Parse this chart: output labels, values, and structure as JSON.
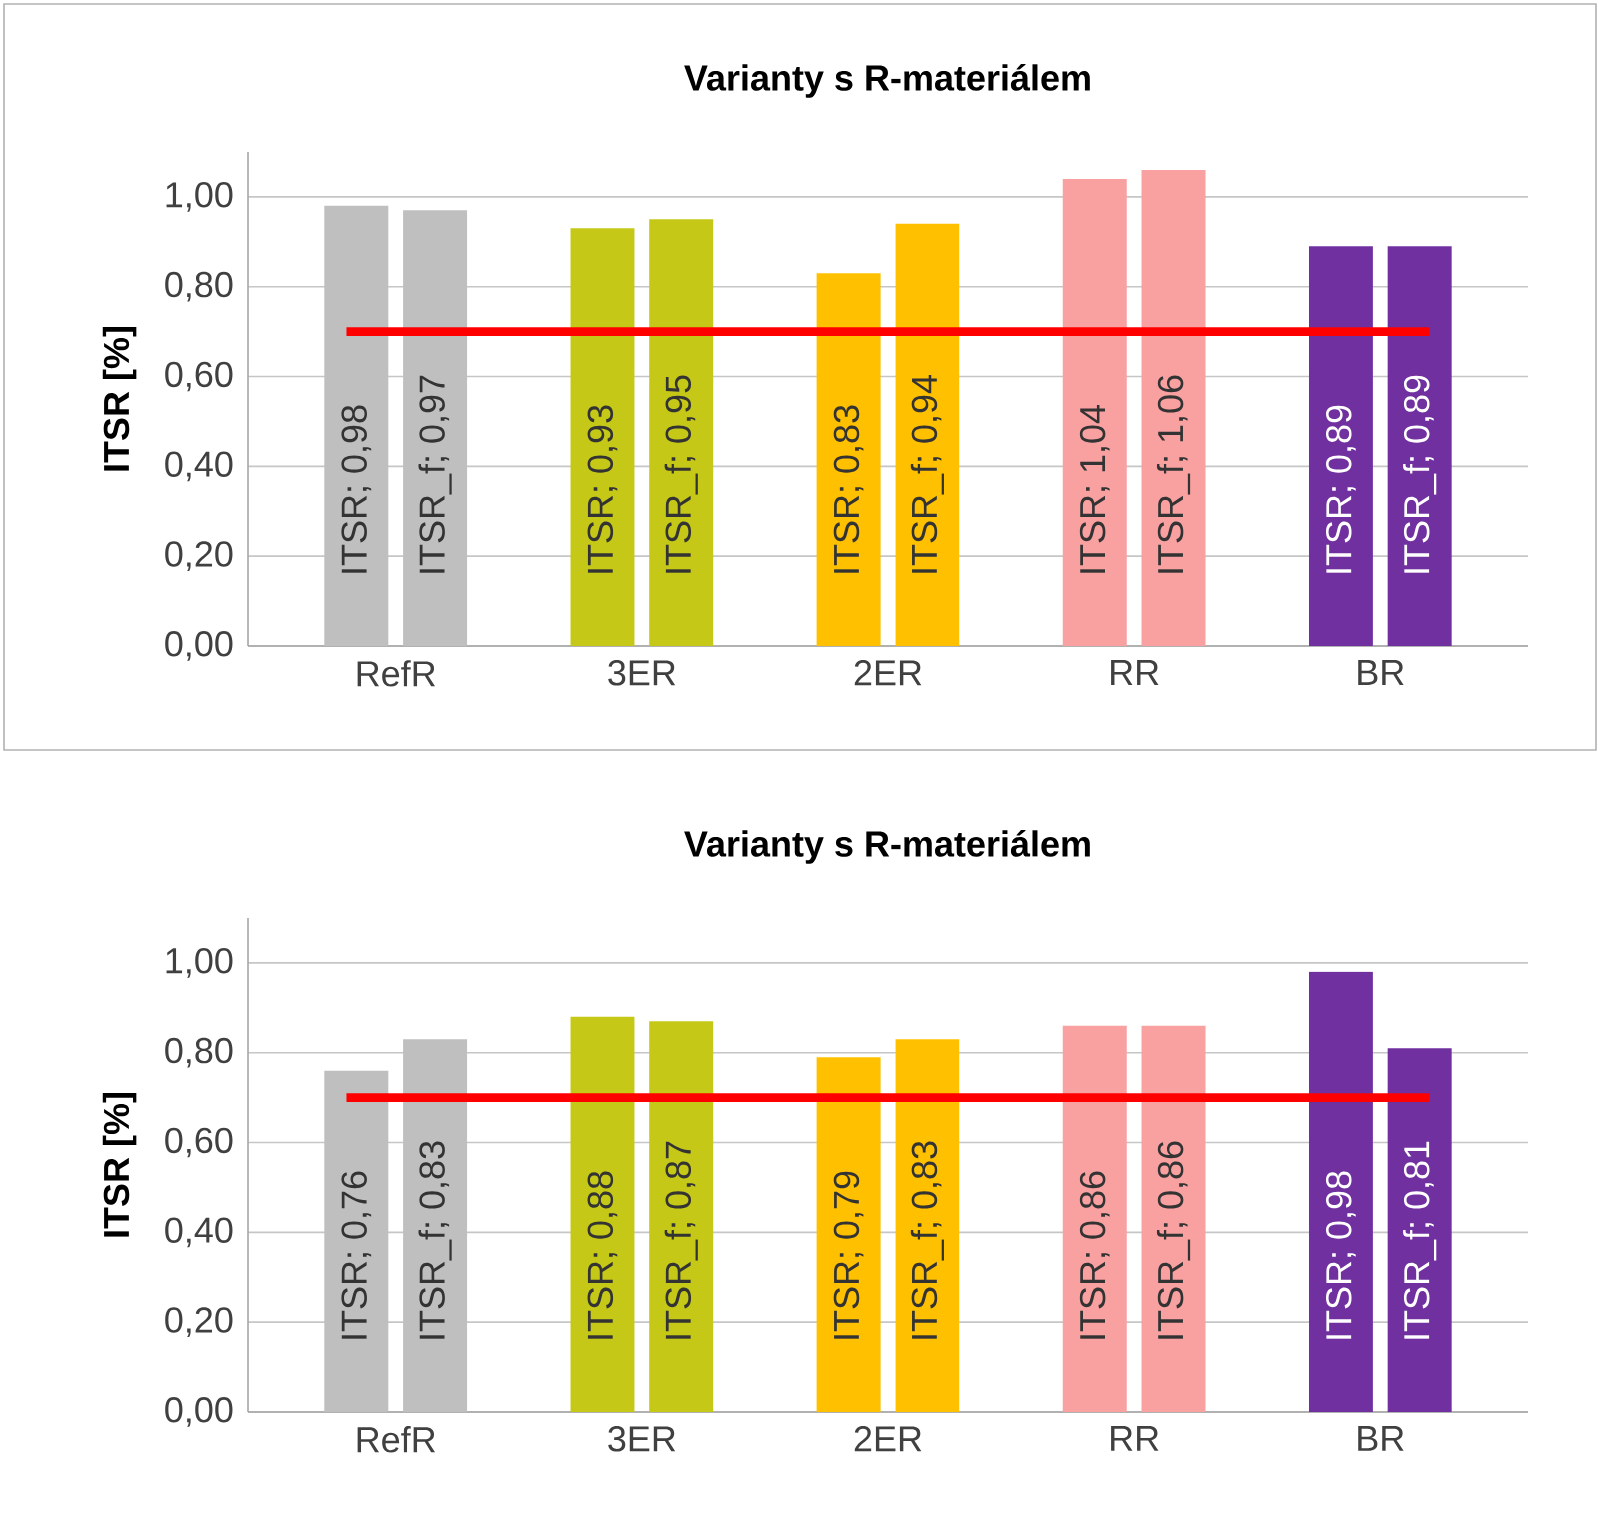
{
  "chart_data": [
    {
      "type": "bar",
      "title": "Varianty s R-materiálem",
      "ylabel": "ITSR [%]",
      "categories": [
        "RefR",
        "3ER",
        "2ER",
        "RR",
        "BR"
      ],
      "series": [
        {
          "colors": [
            "#bfbfbf",
            "#c5c817",
            "#ffc000",
            "#f9a0a0",
            "#7030a0"
          ],
          "values": [
            0.98,
            0.93,
            0.83,
            1.04,
            0.89
          ],
          "value_labels": [
            "ITSR; 0,98",
            "ITSR; 0,93",
            "ITSR; 0,83",
            "ITSR; 1,04",
            "ITSR; 0,89"
          ]
        },
        {
          "colors": [
            "#bfbfbf",
            "#c5c817",
            "#ffc000",
            "#f9a0a0",
            "#7030a0"
          ],
          "values": [
            0.97,
            0.95,
            0.94,
            1.06,
            0.89
          ],
          "value_labels": [
            "ITSR_f; 0,97",
            "ITSR_f; 0,95",
            "ITSR_f; 0,94",
            "ITSR_f; 1,06",
            "ITSR_f; 0,89"
          ]
        }
      ],
      "ylim": [
        0,
        1.1
      ],
      "yticks": [
        {
          "value": 0,
          "label": "0,00"
        },
        {
          "value": 0.2,
          "label": "0,20"
        },
        {
          "value": 0.4,
          "label": "0,40"
        },
        {
          "value": 0.6,
          "label": "0,60"
        },
        {
          "value": 0.8,
          "label": "0,80"
        },
        {
          "value": 1.0,
          "label": "1,00"
        }
      ],
      "grid": "y",
      "ref_lines": [
        {
          "axis": "y",
          "value": 0.7,
          "color": "#ff0000"
        }
      ]
    },
    {
      "type": "bar",
      "title": "Varianty s R-materiálem",
      "ylabel": "ITSR [%]",
      "categories": [
        "RefR",
        "3ER",
        "2ER",
        "RR",
        "BR"
      ],
      "series": [
        {
          "colors": [
            "#bfbfbf",
            "#c5c817",
            "#ffc000",
            "#f9a0a0",
            "#7030a0"
          ],
          "values": [
            0.76,
            0.88,
            0.79,
            0.86,
            0.98
          ],
          "value_labels": [
            "ITSR; 0,76",
            "ITSR; 0,88",
            "ITSR; 0,79",
            "ITSR; 0,86",
            "ITSR; 0,98"
          ]
        },
        {
          "colors": [
            "#bfbfbf",
            "#c5c817",
            "#ffc000",
            "#f9a0a0",
            "#7030a0"
          ],
          "values": [
            0.83,
            0.87,
            0.83,
            0.86,
            0.81
          ],
          "value_labels": [
            "ITSR_f; 0,83",
            "ITSR_f; 0,87",
            "ITSR_f; 0,83",
            "ITSR_f; 0,86",
            "ITSR_f; 0,81"
          ]
        }
      ],
      "ylim": [
        0,
        1.1
      ],
      "yticks": [
        {
          "value": 0,
          "label": "0,00"
        },
        {
          "value": 0.2,
          "label": "0,20"
        },
        {
          "value": 0.4,
          "label": "0,40"
        },
        {
          "value": 0.6,
          "label": "0,60"
        },
        {
          "value": 0.8,
          "label": "0,80"
        },
        {
          "value": 1.0,
          "label": "1,00"
        }
      ],
      "grid": "y",
      "ref_lines": [
        {
          "axis": "y",
          "value": 0.7,
          "color": "#ff0000"
        }
      ]
    }
  ]
}
